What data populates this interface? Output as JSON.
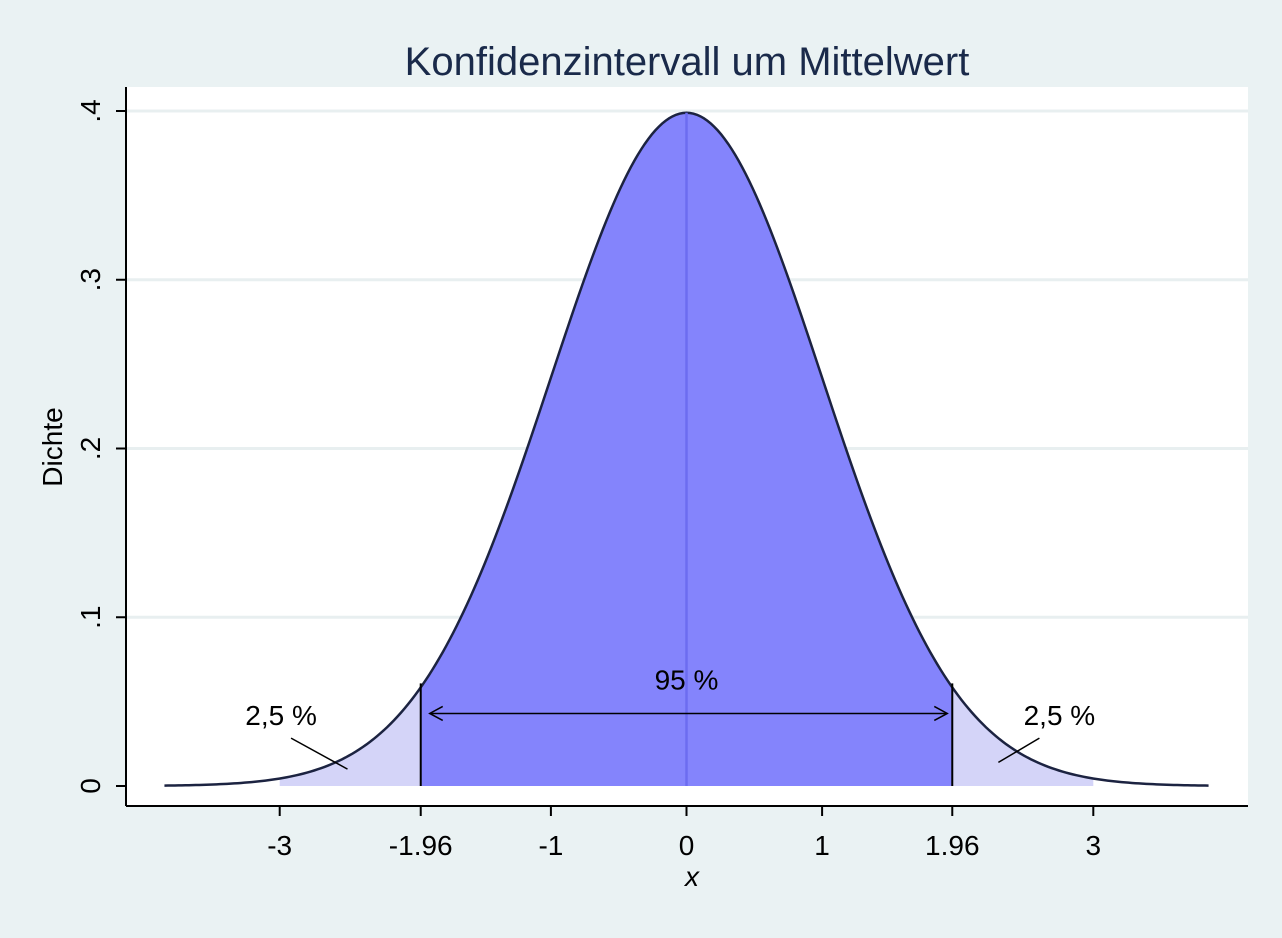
{
  "chart_data": {
    "type": "area",
    "title": "Konfidenzintervall um Mittelwert",
    "xlabel": "x",
    "ylabel": "Dichte",
    "distribution": "standard normal density",
    "xlim": [
      -4,
      4
    ],
    "ylim": [
      0,
      0.4
    ],
    "x_ticks": [
      {
        "value": -3,
        "label": "-3"
      },
      {
        "value": -1.96,
        "label": "-1.96"
      },
      {
        "value": -1,
        "label": "-1"
      },
      {
        "value": 0,
        "label": "0"
      },
      {
        "value": 1,
        "label": "1"
      },
      {
        "value": 1.96,
        "label": "1.96"
      },
      {
        "value": 3,
        "label": "3"
      }
    ],
    "y_ticks": [
      {
        "value": 0,
        "label": "0"
      },
      {
        "value": 0.1,
        "label": ".1"
      },
      {
        "value": 0.2,
        "label": ".2"
      },
      {
        "value": 0.3,
        "label": ".3"
      },
      {
        "value": 0.4,
        "label": ".4"
      }
    ],
    "grid": true,
    "regions": [
      {
        "from": -3,
        "to": -1.96,
        "color": "#d4d4f8"
      },
      {
        "from": -1.96,
        "to": 1.96,
        "color": "#8484fc"
      },
      {
        "from": 1.96,
        "to": 3,
        "color": "#d4d4f8"
      }
    ],
    "mean_line_x": 0,
    "critical_values": [
      -1.96,
      1.96
    ],
    "annotations": [
      {
        "text": "2,5 %",
        "x": -2.99,
        "y": 0.042,
        "pointer_to": [
          -2.5,
          0.01
        ]
      },
      {
        "text": "95 %",
        "x": 0,
        "y": 0.063
      },
      {
        "text": "2,5 %",
        "x": 2.75,
        "y": 0.042,
        "pointer_to": [
          2.3,
          0.014
        ]
      }
    ],
    "interval_arrow": {
      "from": -1.96,
      "to": 1.96,
      "y": 0.043
    }
  }
}
